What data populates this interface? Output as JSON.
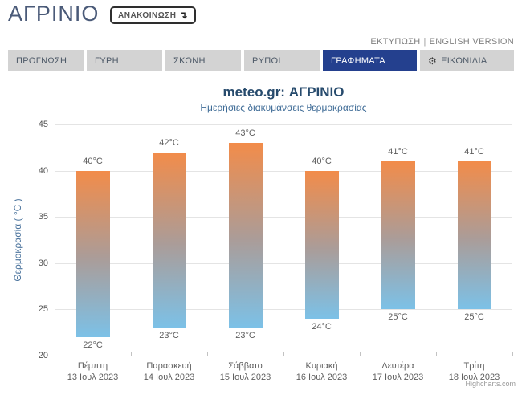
{
  "header": {
    "title": "ΑΓΡΙΝΙΟ",
    "announcement_label": "ΑΝΑΚΟΙΝΩΣΗ",
    "links": {
      "print": "ΕΚΤΥΠΩΣΗ",
      "separator": "|",
      "english": "ENGLISH VERSION"
    }
  },
  "icons": {
    "announcement_arrow": "↴",
    "gear": "⚙"
  },
  "tabs": [
    {
      "label": "ΠΡΟΓΝΩΣΗ",
      "active": false
    },
    {
      "label": "ΓΥΡΗ",
      "active": false
    },
    {
      "label": "ΣΚΟΝΗ",
      "active": false
    },
    {
      "label": "ΡΥΠΟΙ",
      "active": false
    },
    {
      "label": "ΓΡΑΦΗΜΑΤΑ",
      "active": true
    },
    {
      "label": "ΕΙΚΟΝΙΔΙΑ",
      "active": false,
      "icon": "gear"
    }
  ],
  "chart_data": {
    "type": "bar",
    "subtype": "columnrange",
    "title": "meteo.gr: ΑΓΡΙΝΙΟ",
    "subtitle": "Ημερήσιες διακυμάνσεις θερμοκρασίας",
    "ylabel": "Θερμοκρασία ( °C )",
    "unit": "°C",
    "ylim": [
      20,
      45
    ],
    "yticks": [
      20,
      25,
      30,
      35,
      40,
      45
    ],
    "grid": true,
    "legend": false,
    "categories": [
      {
        "day": "Πέμπτη",
        "date": "13 Ιουλ 2023"
      },
      {
        "day": "Παρασκευή",
        "date": "14 Ιουλ 2023"
      },
      {
        "day": "Σάββατο",
        "date": "15 Ιουλ 2023"
      },
      {
        "day": "Κυριακή",
        "date": "16 Ιουλ 2023"
      },
      {
        "day": "Δευτέρα",
        "date": "17 Ιουλ 2023"
      },
      {
        "day": "Τρίτη",
        "date": "18 Ιουλ 2023"
      }
    ],
    "series": [
      {
        "name": "high",
        "values": [
          40,
          42,
          43,
          40,
          41,
          41
        ]
      },
      {
        "name": "low",
        "values": [
          22,
          23,
          23,
          24,
          25,
          25
        ]
      }
    ],
    "credit": "Highcharts.com"
  },
  "colors": {
    "accent_navy": "#24408e",
    "tab_bg": "#d3d3d3",
    "bar_top_orange": "#f28c4a",
    "bar_mid_gray": "#ab9c98",
    "bar_bottom_blue": "#7cc1e7",
    "title_blue": "#274b6d",
    "subtitle_blue": "#3e6b96",
    "axis_title_blue": "#4d759e",
    "gridline_gray": "#e4e4e4"
  }
}
